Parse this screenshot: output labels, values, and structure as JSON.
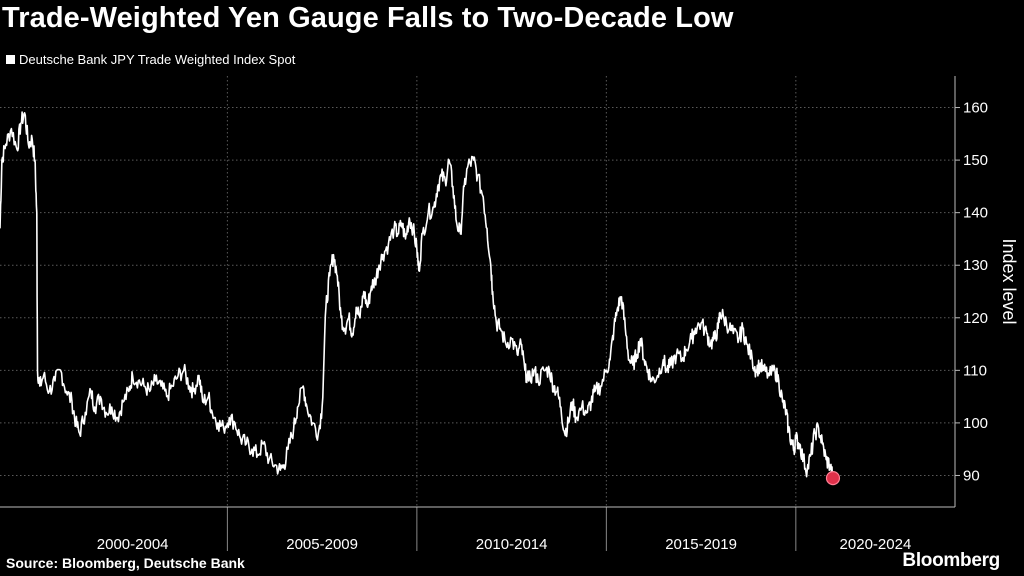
{
  "title": "Trade-Weighted Yen Gauge Falls to Two-Decade Low",
  "source": "Source: Bloomberg, Deutsche Bank",
  "brand": "Bloomberg",
  "colors": {
    "background": "#000000",
    "line": "#ffffff",
    "marker": "#e0304a",
    "grid": "#5a5a5a"
  },
  "chart_data": {
    "type": "line",
    "title": "Trade-Weighted Yen Gauge Falls to Two-Decade Low",
    "ylabel": "Index level",
    "xlabel": "",
    "ylim": [
      84,
      166
    ],
    "xlim": [
      1999.0,
      2024.2
    ],
    "yticks": [
      90,
      100,
      110,
      120,
      130,
      140,
      150,
      160
    ],
    "x_categories": [
      {
        "label": "2000-2004",
        "start": 2000,
        "end": 2005
      },
      {
        "label": "2005-2009",
        "start": 2005,
        "end": 2010
      },
      {
        "label": "2010-2014",
        "start": 2010,
        "end": 2015
      },
      {
        "label": "2015-2019",
        "start": 2015,
        "end": 2020
      },
      {
        "label": "2020-2024",
        "start": 2020,
        "end": 2025
      }
    ],
    "grid": true,
    "legend_position": "top-left",
    "series": [
      {
        "name": "Deutsche Bank JPY Trade Weighted Index Spot",
        "color": "#ffffff",
        "points": [
          [
            1999.0,
            137
          ],
          [
            1999.05,
            150
          ],
          [
            1999.15,
            153
          ],
          [
            1999.3,
            156
          ],
          [
            1999.45,
            152
          ],
          [
            1999.55,
            157
          ],
          [
            1999.65,
            159
          ],
          [
            1999.75,
            153
          ],
          [
            1999.85,
            154
          ],
          [
            1999.92,
            150
          ],
          [
            1999.97,
            140
          ],
          [
            1999.99,
            110
          ],
          [
            2000.05,
            107
          ],
          [
            2000.15,
            109
          ],
          [
            2000.3,
            106
          ],
          [
            2000.45,
            108
          ],
          [
            2000.6,
            110
          ],
          [
            2000.75,
            106
          ],
          [
            2000.9,
            104
          ],
          [
            2001.0,
            100
          ],
          [
            2001.1,
            98
          ],
          [
            2001.25,
            102
          ],
          [
            2001.4,
            106
          ],
          [
            2001.5,
            103
          ],
          [
            2001.65,
            105
          ],
          [
            2001.8,
            102
          ],
          [
            2001.95,
            103
          ],
          [
            2002.1,
            101
          ],
          [
            2002.25,
            104
          ],
          [
            2002.4,
            106
          ],
          [
            2002.5,
            109
          ],
          [
            2002.65,
            108
          ],
          [
            2002.8,
            107
          ],
          [
            2002.95,
            106
          ],
          [
            2003.1,
            108
          ],
          [
            2003.25,
            107
          ],
          [
            2003.4,
            105
          ],
          [
            2003.55,
            107
          ],
          [
            2003.7,
            109
          ],
          [
            2003.85,
            110
          ],
          [
            2004.0,
            107
          ],
          [
            2004.1,
            106
          ],
          [
            2004.25,
            109
          ],
          [
            2004.35,
            104
          ],
          [
            2004.5,
            105
          ],
          [
            2004.6,
            102
          ],
          [
            2004.75,
            100
          ],
          [
            2004.9,
            99
          ],
          [
            2005.05,
            101
          ],
          [
            2005.2,
            100
          ],
          [
            2005.35,
            97
          ],
          [
            2005.5,
            96
          ],
          [
            2005.65,
            95
          ],
          [
            2005.8,
            94
          ],
          [
            2005.95,
            96
          ],
          [
            2006.1,
            93
          ],
          [
            2006.25,
            92
          ],
          [
            2006.4,
            91
          ],
          [
            2006.5,
            92
          ],
          [
            2006.6,
            95
          ],
          [
            2006.75,
            99
          ],
          [
            2006.85,
            103
          ],
          [
            2007.0,
            107
          ],
          [
            2007.1,
            103
          ],
          [
            2007.25,
            100
          ],
          [
            2007.4,
            98
          ],
          [
            2007.5,
            103
          ],
          [
            2007.6,
            122
          ],
          [
            2007.7,
            128
          ],
          [
            2007.8,
            132
          ],
          [
            2007.9,
            128
          ],
          [
            2008.0,
            120
          ],
          [
            2008.1,
            118
          ],
          [
            2008.2,
            120
          ],
          [
            2008.3,
            117
          ],
          [
            2008.4,
            122
          ],
          [
            2008.5,
            120
          ],
          [
            2008.6,
            125
          ],
          [
            2008.7,
            122
          ],
          [
            2008.8,
            126
          ],
          [
            2008.9,
            127
          ],
          [
            2009.0,
            130
          ],
          [
            2009.1,
            132
          ],
          [
            2009.25,
            134
          ],
          [
            2009.4,
            137
          ],
          [
            2009.5,
            136
          ],
          [
            2009.6,
            138
          ],
          [
            2009.7,
            135
          ],
          [
            2009.8,
            139
          ],
          [
            2009.9,
            137
          ],
          [
            2010.0,
            133
          ],
          [
            2010.05,
            129
          ],
          [
            2010.15,
            136
          ],
          [
            2010.3,
            140
          ],
          [
            2010.45,
            141
          ],
          [
            2010.55,
            145
          ],
          [
            2010.65,
            147
          ],
          [
            2010.75,
            146
          ],
          [
            2010.85,
            150
          ],
          [
            2010.95,
            145
          ],
          [
            2011.05,
            138
          ],
          [
            2011.15,
            136
          ],
          [
            2011.25,
            145
          ],
          [
            2011.35,
            149
          ],
          [
            2011.5,
            150
          ],
          [
            2011.6,
            147
          ],
          [
            2011.75,
            143
          ],
          [
            2011.85,
            137
          ],
          [
            2011.95,
            130
          ],
          [
            2012.0,
            125
          ],
          [
            2012.1,
            119
          ],
          [
            2012.2,
            118
          ],
          [
            2012.35,
            115
          ],
          [
            2012.5,
            116
          ],
          [
            2012.65,
            113
          ],
          [
            2012.75,
            115
          ],
          [
            2012.85,
            110
          ],
          [
            2012.95,
            108
          ],
          [
            2013.1,
            110
          ],
          [
            2013.2,
            108
          ],
          [
            2013.35,
            110
          ],
          [
            2013.5,
            110
          ],
          [
            2013.6,
            107
          ],
          [
            2013.7,
            106
          ],
          [
            2013.8,
            103
          ],
          [
            2013.9,
            98
          ],
          [
            2014.0,
            100
          ],
          [
            2014.1,
            104
          ],
          [
            2014.2,
            101
          ],
          [
            2014.35,
            103
          ],
          [
            2014.5,
            102
          ],
          [
            2014.6,
            104
          ],
          [
            2014.7,
            106
          ],
          [
            2014.85,
            107
          ],
          [
            2015.0,
            110
          ],
          [
            2015.1,
            112
          ],
          [
            2015.2,
            118
          ],
          [
            2015.3,
            122
          ],
          [
            2015.4,
            124
          ],
          [
            2015.5,
            118
          ],
          [
            2015.6,
            112
          ],
          [
            2015.7,
            111
          ],
          [
            2015.8,
            113
          ],
          [
            2015.9,
            116
          ],
          [
            2016.0,
            112
          ],
          [
            2016.1,
            110
          ],
          [
            2016.2,
            108
          ],
          [
            2016.35,
            109
          ],
          [
            2016.5,
            112
          ],
          [
            2016.6,
            110
          ],
          [
            2016.7,
            111
          ],
          [
            2016.85,
            113
          ],
          [
            2017.0,
            112
          ],
          [
            2017.1,
            114
          ],
          [
            2017.25,
            116
          ],
          [
            2017.35,
            118
          ],
          [
            2017.5,
            119
          ],
          [
            2017.65,
            117
          ],
          [
            2017.75,
            115
          ],
          [
            2017.85,
            116
          ],
          [
            2017.95,
            118
          ],
          [
            2018.0,
            121
          ],
          [
            2018.1,
            120
          ],
          [
            2018.25,
            118
          ],
          [
            2018.35,
            117
          ],
          [
            2018.5,
            116
          ],
          [
            2018.6,
            118
          ],
          [
            2018.7,
            115
          ],
          [
            2018.85,
            112
          ],
          [
            2018.95,
            110
          ],
          [
            2019.05,
            111
          ],
          [
            2019.15,
            110
          ],
          [
            2019.3,
            109
          ],
          [
            2019.45,
            110
          ],
          [
            2019.55,
            108
          ],
          [
            2019.65,
            104
          ],
          [
            2019.75,
            102
          ],
          [
            2019.8,
            99
          ],
          [
            2019.9,
            96
          ],
          [
            2019.95,
            95
          ],
          [
            2020.0,
            97
          ],
          [
            2020.1,
            96
          ],
          [
            2020.2,
            93
          ],
          [
            2020.3,
            91
          ],
          [
            2020.4,
            94
          ],
          [
            2020.5,
            98
          ],
          [
            2020.6,
            99
          ],
          [
            2020.7,
            96
          ],
          [
            2020.8,
            93
          ],
          [
            2020.9,
            92
          ],
          [
            2020.98,
            89.5
          ]
        ]
      }
    ],
    "annotations": [
      {
        "type": "end-marker",
        "x": 2020.98,
        "y": 89.5
      }
    ]
  }
}
